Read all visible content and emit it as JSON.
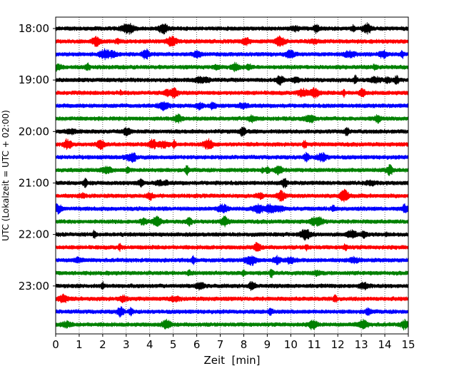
{
  "chart_data": {
    "type": "line",
    "title": "",
    "xlabel": "Zeit  [min]",
    "ylabel": "UTC (Lokalzeit = UTC + 02:00)",
    "xlim": [
      0,
      15
    ],
    "x_ticks": [
      "0",
      "1",
      "2",
      "3",
      "4",
      "5",
      "6",
      "7",
      "8",
      "9",
      "10",
      "11",
      "12",
      "13",
      "14",
      "15"
    ],
    "y_tick_labels": [
      "18:00",
      "19:00",
      "20:00",
      "21:00",
      "22:00",
      "23:00"
    ],
    "grid": "vertical dotted at each minute",
    "trace_colors": [
      "#000000",
      "#ff0000",
      "#0000ff",
      "#008000"
    ],
    "series": [
      {
        "start": "18:00",
        "color": "#000000"
      },
      {
        "start": "18:15",
        "color": "#ff0000"
      },
      {
        "start": "18:30",
        "color": "#0000ff"
      },
      {
        "start": "18:45",
        "color": "#008000"
      },
      {
        "start": "19:00",
        "color": "#000000"
      },
      {
        "start": "19:15",
        "color": "#ff0000"
      },
      {
        "start": "19:30",
        "color": "#0000ff"
      },
      {
        "start": "19:45",
        "color": "#008000"
      },
      {
        "start": "20:00",
        "color": "#000000"
      },
      {
        "start": "20:15",
        "color": "#ff0000"
      },
      {
        "start": "20:30",
        "color": "#0000ff"
      },
      {
        "start": "20:45",
        "color": "#008000"
      },
      {
        "start": "21:00",
        "color": "#000000"
      },
      {
        "start": "21:15",
        "color": "#ff0000"
      },
      {
        "start": "21:30",
        "color": "#0000ff"
      },
      {
        "start": "21:45",
        "color": "#008000"
      },
      {
        "start": "22:00",
        "color": "#000000"
      },
      {
        "start": "22:15",
        "color": "#ff0000"
      },
      {
        "start": "22:30",
        "color": "#0000ff"
      },
      {
        "start": "22:45",
        "color": "#008000"
      },
      {
        "start": "23:00",
        "color": "#000000"
      },
      {
        "start": "23:15",
        "color": "#ff0000"
      },
      {
        "start": "23:30",
        "color": "#0000ff"
      },
      {
        "start": "23:45",
        "color": "#008000"
      }
    ]
  }
}
